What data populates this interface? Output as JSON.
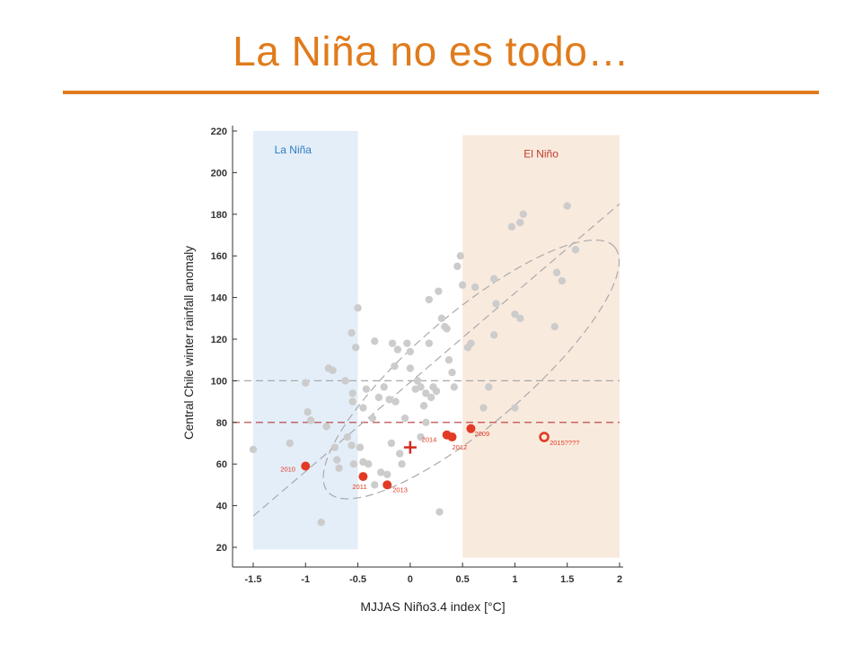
{
  "slide": {
    "title": "La Niña no es todo…"
  },
  "chart_data": {
    "type": "scatter",
    "title": "",
    "xlabel": "MJJAS Niño3.4 index [°C]",
    "ylabel": "Central Chile winter rainfall anomaly",
    "xlim": [
      -1.7,
      2
    ],
    "ylim": [
      12,
      220
    ],
    "xticks": [
      "-1.5",
      "-1",
      "-0.5",
      "0",
      "0.5",
      "1",
      "1.5",
      "2"
    ],
    "yticks": [
      "20",
      "40",
      "60",
      "80",
      "100",
      "120",
      "140",
      "160",
      "180",
      "200",
      "220"
    ],
    "grid": false,
    "shaded_regions": [
      {
        "label": "La Niña",
        "x": [
          -1.5,
          -0.5
        ],
        "y": [
          19,
          220
        ],
        "color": "#e3eef8",
        "label_color": "#2e7dc2"
      },
      {
        "label": "El Niño",
        "x": [
          0.5,
          2.0
        ],
        "y": [
          15,
          218
        ],
        "color": "#f9eade",
        "label_color": "#c0392b"
      }
    ],
    "reference_lines": [
      {
        "y": 100,
        "color": "#a8a8a8",
        "style": "dashed"
      },
      {
        "y": 80,
        "color": "#b5393c",
        "style": "dashed"
      }
    ],
    "trend_line": {
      "x": [
        -1.5,
        2.0
      ],
      "y": [
        35,
        185
      ],
      "color": "#aaaaaa",
      "style": "dashed"
    },
    "confidence_ellipse": {
      "center": [
        0.6,
        102
      ],
      "color": "#aaaaaa",
      "style": "dashed"
    },
    "mean_marker": {
      "x": 0.0,
      "y": 68,
      "symbol": "+",
      "color": "#d32b1e"
    },
    "series": [
      {
        "color": "#cccccc",
        "points": [
          [
            -1.5,
            67
          ],
          [
            -1.15,
            70
          ],
          [
            -1.0,
            99
          ],
          [
            -0.98,
            85
          ],
          [
            -0.95,
            81
          ],
          [
            -0.85,
            32
          ],
          [
            -0.8,
            78
          ],
          [
            -0.78,
            106
          ],
          [
            -0.74,
            105
          ],
          [
            -0.72,
            68
          ],
          [
            -0.7,
            62
          ],
          [
            -0.68,
            58
          ],
          [
            -0.62,
            100
          ],
          [
            -0.6,
            73
          ],
          [
            -0.56,
            69
          ],
          [
            -0.54,
            60
          ],
          [
            -0.55,
            90
          ],
          [
            -0.55,
            94
          ],
          [
            -0.56,
            123
          ],
          [
            -0.52,
            116
          ],
          [
            -0.5,
            135
          ],
          [
            -0.48,
            68
          ],
          [
            -0.45,
            61
          ],
          [
            -0.45,
            87
          ],
          [
            -0.42,
            96
          ],
          [
            -0.4,
            60
          ],
          [
            -0.36,
            82
          ],
          [
            -0.34,
            50
          ],
          [
            -0.34,
            119
          ],
          [
            -0.3,
            92
          ],
          [
            -0.28,
            56
          ],
          [
            -0.25,
            97
          ],
          [
            -0.22,
            55
          ],
          [
            -0.2,
            91
          ],
          [
            -0.18,
            70
          ],
          [
            -0.17,
            118
          ],
          [
            -0.15,
            107
          ],
          [
            -0.14,
            90
          ],
          [
            -0.12,
            115
          ],
          [
            -0.1,
            65
          ],
          [
            -0.08,
            60
          ],
          [
            -0.05,
            82
          ],
          [
            -0.03,
            118
          ],
          [
            0.0,
            106
          ],
          [
            0.0,
            114
          ],
          [
            0.05,
            96
          ],
          [
            0.07,
            100
          ],
          [
            0.1,
            97
          ],
          [
            0.1,
            73
          ],
          [
            0.13,
            88
          ],
          [
            0.15,
            94
          ],
          [
            0.15,
            80
          ],
          [
            0.18,
            118
          ],
          [
            0.18,
            139
          ],
          [
            0.2,
            92
          ],
          [
            0.22,
            97
          ],
          [
            0.25,
            95
          ],
          [
            0.27,
            143
          ],
          [
            0.3,
            130
          ],
          [
            0.33,
            126
          ],
          [
            0.35,
            125
          ],
          [
            0.37,
            110
          ],
          [
            0.4,
            104
          ],
          [
            0.42,
            97
          ],
          [
            0.45,
            155
          ],
          [
            0.48,
            160
          ],
          [
            0.5,
            146
          ],
          [
            0.55,
            116
          ],
          [
            0.58,
            118
          ],
          [
            0.62,
            145
          ],
          [
            0.7,
            87
          ],
          [
            0.75,
            97
          ],
          [
            0.8,
            149
          ],
          [
            0.82,
            137
          ],
          [
            0.8,
            122
          ],
          [
            0.97,
            174
          ],
          [
            1.0,
            87
          ],
          [
            1.05,
            176
          ],
          [
            1.08,
            180
          ],
          [
            1.0,
            132
          ],
          [
            1.05,
            130
          ],
          [
            1.38,
            126
          ],
          [
            1.4,
            152
          ],
          [
            1.45,
            148
          ],
          [
            1.5,
            184
          ],
          [
            1.58,
            163
          ],
          [
            0.28,
            37
          ]
        ]
      },
      {
        "color": "#e23a24",
        "labels": [
          "2010",
          "2011",
          "2013",
          "2014",
          "2012",
          "2009"
        ],
        "points": [
          [
            -1.0,
            59
          ],
          [
            -0.45,
            54
          ],
          [
            -0.22,
            50
          ],
          [
            0.35,
            74
          ],
          [
            0.4,
            73
          ],
          [
            0.58,
            77
          ]
        ]
      },
      {
        "color": "#e23a24",
        "marker": "open",
        "labels": [
          "2015????"
        ],
        "points": [
          [
            1.28,
            73
          ]
        ]
      }
    ]
  }
}
